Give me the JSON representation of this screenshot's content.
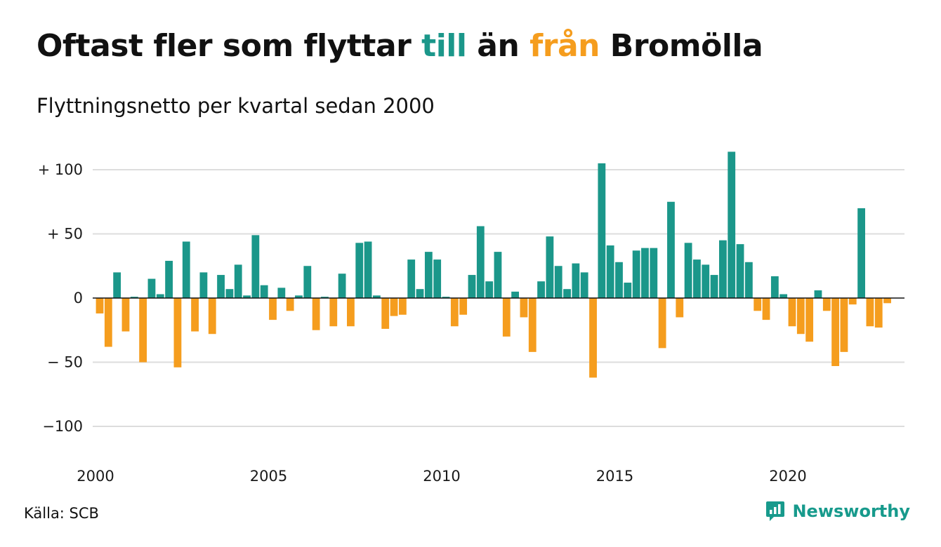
{
  "header": {
    "title_part1": "Oftast fler som flyttar ",
    "title_till": "till",
    "title_part2": " än ",
    "title_fran": "från",
    "title_part3": " Bromölla",
    "subtitle": "Flyttningsnetto per kvartal sedan 2000"
  },
  "footer": {
    "source": "Källa: SCB",
    "brand": "Newsworthy"
  },
  "colors": {
    "positive": "#1b978a",
    "negative": "#f59d1e",
    "grid": "#dddddd",
    "brand": "#179a8c"
  },
  "icons": {
    "brand_logo": "newsworthy-logo-icon"
  },
  "chart_data": {
    "type": "bar",
    "title": "Oftast fler som flyttar till än från Bromölla",
    "subtitle": "Flyttningsnetto per kvartal sedan 2000",
    "x_start": 2000,
    "periods_per_year": 4,
    "x_ticks": [
      2000,
      2005,
      2010,
      2015,
      2020
    ],
    "x_tick_labels": [
      "2000",
      "2005",
      "2010",
      "2015",
      "2020"
    ],
    "y_ticks": [
      100,
      50,
      0,
      -50,
      -100
    ],
    "y_tick_labels": [
      "+ 100",
      "+  50",
      "0",
      "− 50",
      "−100"
    ],
    "ylim": [
      -120,
      115
    ],
    "grid": true,
    "values": [
      -12,
      -38,
      20,
      -26,
      1,
      -50,
      15,
      3,
      29,
      -54,
      44,
      -26,
      20,
      -28,
      18,
      7,
      26,
      2,
      49,
      10,
      -17,
      8,
      -10,
      2,
      25,
      -25,
      1,
      -22,
      19,
      -22,
      43,
      44,
      2,
      -24,
      -14,
      -13,
      30,
      7,
      36,
      30,
      1,
      -22,
      -13,
      18,
      56,
      13,
      36,
      -30,
      5,
      -15,
      -42,
      13,
      48,
      25,
      7,
      27,
      20,
      -62,
      105,
      41,
      28,
      12,
      37,
      39,
      39,
      -39,
      75,
      -15,
      43,
      30,
      26,
      18,
      45,
      114,
      42,
      28,
      -10,
      -17,
      17,
      3,
      -22,
      -28,
      -34,
      6,
      -10,
      -53,
      -42,
      -5,
      70,
      -22,
      -23,
      -4
    ]
  }
}
